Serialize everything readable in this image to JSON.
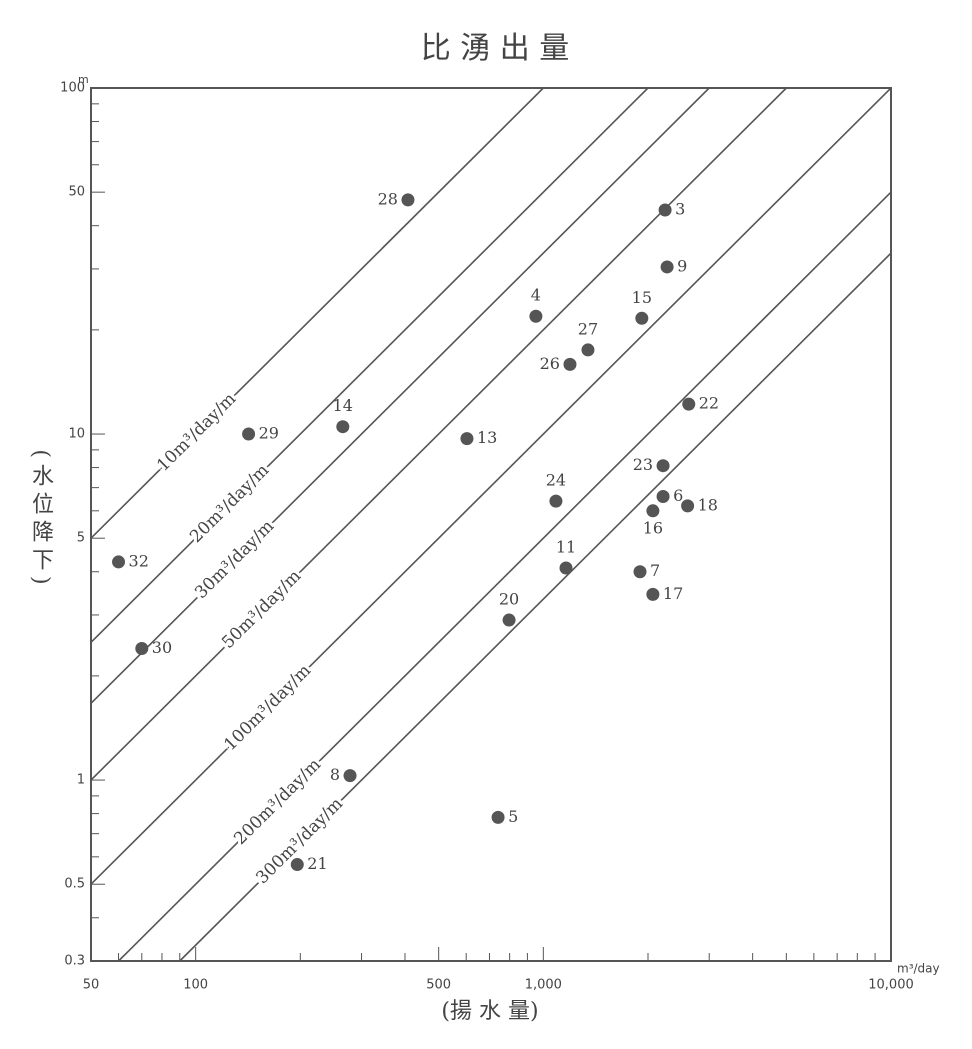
{
  "chart_data": {
    "type": "scatter",
    "title": "比 湧 出 量",
    "x_label": "(揚 水 量)",
    "y_label": "(水位降下)",
    "x_unit": "m³/day",
    "y_unit": "m",
    "log_x": true,
    "log_y": true,
    "grid": false,
    "color": "#555555",
    "xlim": [
      50,
      10000
    ],
    "ylim": [
      0.3,
      100
    ],
    "xticks": [
      50,
      100,
      500,
      {
        "value": 1000,
        "label": "1,000"
      },
      {
        "value": 10000,
        "label": "10,000"
      }
    ],
    "xminorticks": [
      60,
      70,
      80,
      90,
      200,
      300,
      400,
      600,
      700,
      800,
      900,
      2000,
      3000,
      4000,
      5000,
      6000,
      7000,
      8000,
      9000
    ],
    "yticks": [
      0.3,
      0.5,
      1,
      5,
      10,
      50,
      100
    ],
    "yminorticks": [
      0.4,
      0.6,
      0.7,
      0.8,
      0.9,
      2,
      3,
      4,
      6,
      7,
      8,
      9,
      20,
      30,
      40,
      60,
      70,
      80,
      90
    ],
    "lines": [
      {
        "capacity": 10,
        "label": "10m³/day/m"
      },
      {
        "capacity": 20,
        "label": "20m³/day/m"
      },
      {
        "capacity": 30,
        "label": "30m³/day/m"
      },
      {
        "capacity": 50,
        "label": "50m³/day/m"
      },
      {
        "capacity": 100,
        "label": "100m³/day/m"
      },
      {
        "capacity": 200,
        "label": "200m³/day/m"
      },
      {
        "capacity": 300,
        "label": "300m³/day/m"
      }
    ],
    "points": [
      {
        "label": "28",
        "x": 408,
        "y": 47.5
      },
      {
        "label": "3",
        "x": 2240,
        "y": 44.4
      },
      {
        "label": "9",
        "x": 2270,
        "y": 30.4
      },
      {
        "label": "4",
        "x": 952,
        "y": 21.9
      },
      {
        "label": "15",
        "x": 1920,
        "y": 21.6
      },
      {
        "label": "27",
        "x": 1344,
        "y": 17.5
      },
      {
        "label": "26",
        "x": 1193,
        "y": 15.9
      },
      {
        "label": "22",
        "x": 2620,
        "y": 12.2
      },
      {
        "label": "14",
        "x": 265,
        "y": 10.5
      },
      {
        "label": "29",
        "x": 142,
        "y": 10.0
      },
      {
        "label": "13",
        "x": 603,
        "y": 9.7
      },
      {
        "label": "23",
        "x": 2210,
        "y": 8.1
      },
      {
        "label": "6",
        "x": 2210,
        "y": 6.6
      },
      {
        "label": "24",
        "x": 1087,
        "y": 6.4
      },
      {
        "label": "18",
        "x": 2600,
        "y": 6.2
      },
      {
        "label": "16",
        "x": 2066,
        "y": 6.0
      },
      {
        "label": "32",
        "x": 60,
        "y": 4.27
      },
      {
        "label": "11",
        "x": 1162,
        "y": 4.1
      },
      {
        "label": "7",
        "x": 1897,
        "y": 4.0
      },
      {
        "label": "17",
        "x": 2066,
        "y": 3.44
      },
      {
        "label": "20",
        "x": 797,
        "y": 2.9
      },
      {
        "label": "30",
        "x": 70,
        "y": 2.4
      },
      {
        "label": "8",
        "x": 278,
        "y": 1.03
      },
      {
        "label": "5",
        "x": 741,
        "y": 0.78
      },
      {
        "label": "21",
        "x": 196,
        "y": 0.57
      }
    ]
  }
}
